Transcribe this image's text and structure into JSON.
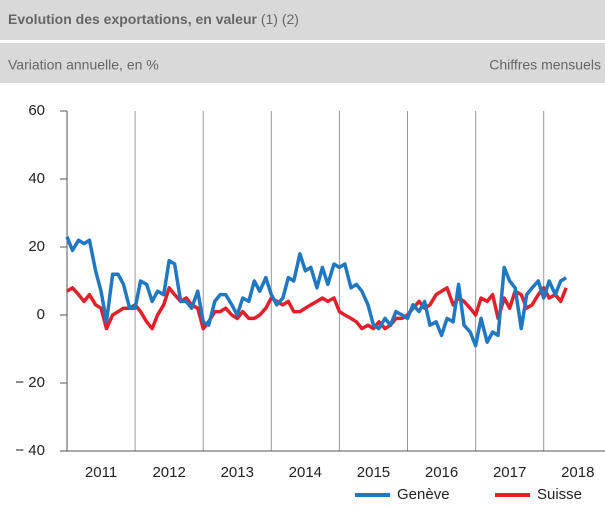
{
  "chart_data": {
    "type": "line",
    "title": "Evolution des exportations, en valeur",
    "title_notes": "(1) (2)",
    "subtitle": "Variation annuelle, en %",
    "note": "Chiffres mensuels",
    "x": [
      2011,
      2011.08,
      2011.17,
      2011.25,
      2011.33,
      2011.42,
      2011.5,
      2011.58,
      2011.67,
      2011.75,
      2011.83,
      2011.92,
      2012,
      2012.08,
      2012.17,
      2012.25,
      2012.33,
      2012.42,
      2012.5,
      2012.58,
      2012.67,
      2012.75,
      2012.83,
      2012.92,
      2013,
      2013.08,
      2013.17,
      2013.25,
      2013.33,
      2013.42,
      2013.5,
      2013.58,
      2013.67,
      2013.75,
      2013.83,
      2013.92,
      2014,
      2014.08,
      2014.17,
      2014.25,
      2014.33,
      2014.42,
      2014.5,
      2014.58,
      2014.67,
      2014.75,
      2014.83,
      2014.92,
      2015,
      2015.08,
      2015.17,
      2015.25,
      2015.33,
      2015.42,
      2015.5,
      2015.58,
      2015.67,
      2015.75,
      2015.83,
      2015.92,
      2016,
      2016.08,
      2016.17,
      2016.25,
      2016.33,
      2016.42,
      2016.5,
      2016.58,
      2016.67,
      2016.75,
      2016.83,
      2016.92,
      2017,
      2017.08,
      2017.17,
      2017.25,
      2017.33,
      2017.42,
      2017.5,
      2017.58,
      2017.67,
      2017.75,
      2017.83,
      2017.92,
      2018,
      2018.08,
      2018.17,
      2018.25,
      2018.33
    ],
    "series": [
      {
        "name": "Genève",
        "color": "#1f78c1",
        "values": [
          23,
          19,
          22,
          21,
          22,
          13,
          7,
          -2,
          12,
          12,
          9,
          2,
          2,
          10,
          9,
          4,
          7,
          6,
          16,
          15,
          4,
          4,
          2,
          7,
          -2,
          -3,
          4,
          6,
          6,
          3,
          0,
          5,
          4,
          10,
          7,
          11,
          6,
          3,
          5,
          11,
          10,
          18,
          13,
          14,
          8,
          14,
          9,
          15,
          14,
          15,
          8,
          9,
          7,
          3,
          -3,
          -4,
          -1,
          -3,
          1,
          0,
          -1,
          3,
          1,
          4,
          -3,
          -2,
          -6,
          -1,
          -2,
          9,
          -3,
          -5,
          -9,
          -1,
          -8,
          -5,
          -6,
          14,
          10,
          8,
          -4,
          6,
          8,
          10,
          5,
          10,
          6,
          10,
          11
        ]
      },
      {
        "name": "Suisse",
        "color": "#e3202a",
        "values": [
          7,
          8,
          6,
          4,
          6,
          3,
          2,
          -4,
          0,
          1,
          2,
          2,
          3,
          1,
          -2,
          -4,
          0,
          3,
          8,
          6,
          4,
          5,
          3,
          2,
          -4,
          -2,
          1,
          1,
          2,
          0,
          -1,
          1,
          -1,
          -1,
          0,
          2,
          5,
          4,
          3,
          4,
          1,
          1,
          2,
          3,
          4,
          5,
          4,
          5,
          1,
          0,
          -1,
          -2,
          -4,
          -3,
          -4,
          -2,
          -4,
          -3,
          -1,
          -1,
          0,
          2,
          4,
          2,
          3,
          6,
          7,
          8,
          3,
          5,
          4,
          2,
          0,
          5,
          4,
          6,
          -1,
          5,
          2,
          7,
          6,
          2,
          3,
          6,
          8,
          5,
          6,
          4,
          8
        ]
      }
    ],
    "xlim": [
      2011,
      2018.9
    ],
    "xticks": [
      2011,
      2012,
      2013,
      2014,
      2015,
      2016,
      2017,
      2018
    ],
    "ylim": [
      -40,
      60
    ],
    "yticks": [
      {
        "value": -40,
        "label": "− 40"
      },
      {
        "value": -20,
        "label": "− 20"
      },
      0,
      20,
      40,
      60
    ],
    "grid": "x",
    "legend": "bottom-right"
  }
}
